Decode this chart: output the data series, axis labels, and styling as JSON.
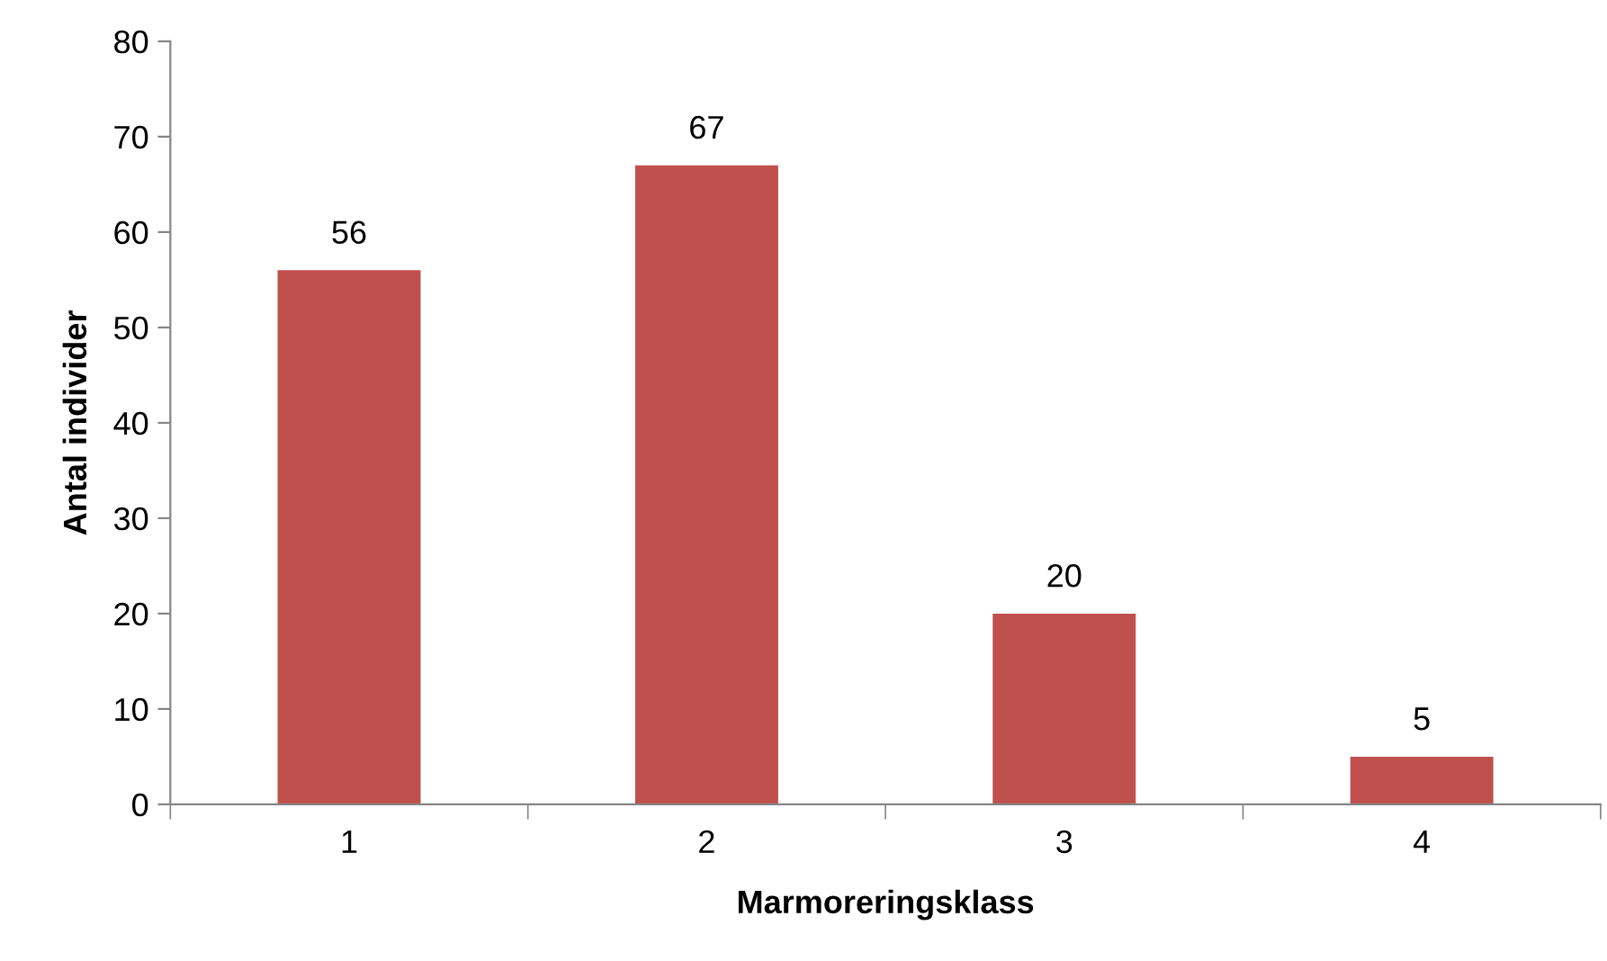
{
  "chart_data": {
    "type": "bar",
    "xlabel": "Marmoreringsklass",
    "ylabel": "Antal individer",
    "categories": [
      "1",
      "2",
      "3",
      "4"
    ],
    "values": [
      56,
      67,
      20,
      5
    ],
    "color": "#c0504d",
    "ylim": [
      0,
      80
    ],
    "yticks": [
      0,
      10,
      20,
      30,
      40,
      50,
      60,
      70,
      80
    ],
    "data_labels": true,
    "grid": false,
    "legend": false
  }
}
